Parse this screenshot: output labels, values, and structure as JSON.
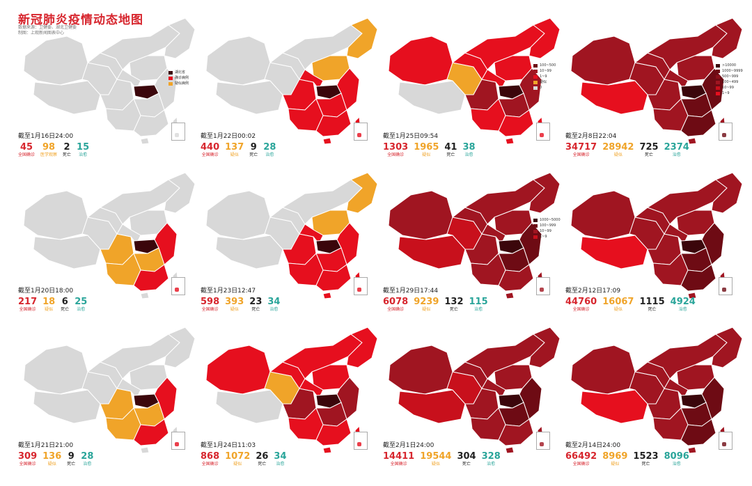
{
  "title": "新冠肺炎疫情动态地图",
  "subtitle_lines": [
    "数据来源：卫健委、湖北卫健委",
    "制图：上观新闻图表中心"
  ],
  "colors": {
    "gray": "#d8d8d8",
    "orange": "#f0a429",
    "red": "#e60f1e",
    "red2": "#c8101c",
    "dark": "#a01521",
    "darker": "#6e0b14",
    "darkest": "#3b060b",
    "confirmed": "#d7262e",
    "suspected": "#f0a429",
    "deaths": "#222222",
    "cured": "#2aa59a"
  },
  "panels": [
    {
      "date": "截至1月16日24:00",
      "legend": [
        {
          "color": "#3b060b",
          "label": "湖北省"
        },
        {
          "color": "#e60f1e",
          "label": "确诊病例"
        },
        {
          "color": "#f0a429",
          "label": "疑似病例"
        }
      ],
      "fill_level": 0,
      "stats": [
        {
          "num": "45",
          "label": "全国确诊",
          "kind": "confirmed"
        },
        {
          "num": "98",
          "label": "医学观察",
          "kind": "suspected"
        },
        {
          "num": "2",
          "label": "死亡",
          "kind": "deaths"
        },
        {
          "num": "15",
          "label": "治愈",
          "kind": "cured"
        }
      ]
    },
    {
      "date": "截至1月22日00:02",
      "legend": [],
      "fill_level": 2,
      "stats": [
        {
          "num": "440",
          "label": "全国确诊",
          "kind": "confirmed"
        },
        {
          "num": "137",
          "label": "疑似",
          "kind": "suspected"
        },
        {
          "num": "9",
          "label": "死亡",
          "kind": "deaths"
        },
        {
          "num": "28",
          "label": "治愈",
          "kind": "cured"
        }
      ]
    },
    {
      "date": "截至1月25日09:54",
      "legend": [
        {
          "color": "#6e0b14",
          "label": "100~500"
        },
        {
          "color": "#a01521",
          "label": "10~99"
        },
        {
          "color": "#e60f1e",
          "label": "1~9"
        },
        {
          "color": "#f0a429",
          "label": "疑似"
        },
        {
          "color": "#d8d8d8",
          "label": "0"
        }
      ],
      "fill_level": 3,
      "stats": [
        {
          "num": "1303",
          "label": "全国确诊",
          "kind": "confirmed"
        },
        {
          "num": "1965",
          "label": "疑似",
          "kind": "suspected"
        },
        {
          "num": "41",
          "label": "死亡",
          "kind": "deaths"
        },
        {
          "num": "38",
          "label": "治愈",
          "kind": "cured"
        }
      ]
    },
    {
      "date": "截至2月8日22:04",
      "legend": [
        {
          "color": "#3b060b",
          "label": ">10000"
        },
        {
          "color": "#6e0b14",
          "label": "1000~9999"
        },
        {
          "color": "#8a101a",
          "label": "500~999"
        },
        {
          "color": "#a01521",
          "label": "100~499"
        },
        {
          "color": "#c8101c",
          "label": "10~99"
        },
        {
          "color": "#e60f1e",
          "label": "1~9"
        }
      ],
      "fill_level": 5,
      "stats": [
        {
          "num": "34717",
          "label": "全国确诊",
          "kind": "confirmed"
        },
        {
          "num": "28942",
          "label": "疑似",
          "kind": "suspected"
        },
        {
          "num": "725",
          "label": "死亡",
          "kind": "deaths"
        },
        {
          "num": "2374",
          "label": "治愈",
          "kind": "cured"
        }
      ]
    },
    {
      "date": "截至1月20日18:00",
      "legend": [],
      "fill_level": 1,
      "stats": [
        {
          "num": "217",
          "label": "全国确诊",
          "kind": "confirmed"
        },
        {
          "num": "18",
          "label": "疑似",
          "kind": "suspected"
        },
        {
          "num": "6",
          "label": "死亡",
          "kind": "deaths"
        },
        {
          "num": "25",
          "label": "治愈",
          "kind": "cured"
        }
      ]
    },
    {
      "date": "截至1月23日12:47",
      "legend": [],
      "fill_level": 2,
      "stats": [
        {
          "num": "598",
          "label": "全国确诊",
          "kind": "confirmed"
        },
        {
          "num": "393",
          "label": "疑似",
          "kind": "suspected"
        },
        {
          "num": "23",
          "label": "死亡",
          "kind": "deaths"
        },
        {
          "num": "34",
          "label": "治愈",
          "kind": "cured"
        }
      ]
    },
    {
      "date": "截至1月29日17:44",
      "legend": [
        {
          "color": "#3b060b",
          "label": "1000~5000"
        },
        {
          "color": "#6e0b14",
          "label": "100~999"
        },
        {
          "color": "#a01521",
          "label": "10~99"
        },
        {
          "color": "#c8101c",
          "label": "1~9"
        }
      ],
      "fill_level": 4,
      "stats": [
        {
          "num": "6078",
          "label": "全国确诊",
          "kind": "confirmed"
        },
        {
          "num": "9239",
          "label": "疑似",
          "kind": "suspected"
        },
        {
          "num": "132",
          "label": "死亡",
          "kind": "deaths"
        },
        {
          "num": "115",
          "label": "治愈",
          "kind": "cured"
        }
      ]
    },
    {
      "date": "截至2月12日17:09",
      "legend": [],
      "fill_level": 5,
      "stats": [
        {
          "num": "44760",
          "label": "全国确诊",
          "kind": "confirmed"
        },
        {
          "num": "16067",
          "label": "疑似",
          "kind": "suspected"
        },
        {
          "num": "1115",
          "label": "死亡",
          "kind": "deaths"
        },
        {
          "num": "4924",
          "label": "治愈",
          "kind": "cured"
        }
      ]
    },
    {
      "date": "截至1月21日21:00",
      "legend": [],
      "fill_level": 1,
      "stats": [
        {
          "num": "309",
          "label": "全国确诊",
          "kind": "confirmed"
        },
        {
          "num": "136",
          "label": "疑似",
          "kind": "suspected"
        },
        {
          "num": "9",
          "label": "死亡",
          "kind": "deaths"
        },
        {
          "num": "28",
          "label": "治愈",
          "kind": "cured"
        }
      ]
    },
    {
      "date": "截至1月24日11:03",
      "legend": [],
      "fill_level": 3,
      "stats": [
        {
          "num": "868",
          "label": "全国确诊",
          "kind": "confirmed"
        },
        {
          "num": "1072",
          "label": "疑似",
          "kind": "suspected"
        },
        {
          "num": "26",
          "label": "死亡",
          "kind": "deaths"
        },
        {
          "num": "34",
          "label": "治愈",
          "kind": "cured"
        }
      ]
    },
    {
      "date": "截至2月1日24:00",
      "legend": [],
      "fill_level": 4,
      "stats": [
        {
          "num": "14411",
          "label": "全国确诊",
          "kind": "confirmed"
        },
        {
          "num": "19544",
          "label": "疑似",
          "kind": "suspected"
        },
        {
          "num": "304",
          "label": "死亡",
          "kind": "deaths"
        },
        {
          "num": "328",
          "label": "治愈",
          "kind": "cured"
        }
      ]
    },
    {
      "date": "截至2月14日24:00",
      "legend": [],
      "fill_level": 5,
      "stats": [
        {
          "num": "66492",
          "label": "全国确诊",
          "kind": "confirmed"
        },
        {
          "num": "8969",
          "label": "疑似",
          "kind": "suspected"
        },
        {
          "num": "1523",
          "label": "死亡",
          "kind": "deaths"
        },
        {
          "num": "8096",
          "label": "治愈",
          "kind": "cured"
        }
      ]
    }
  ]
}
